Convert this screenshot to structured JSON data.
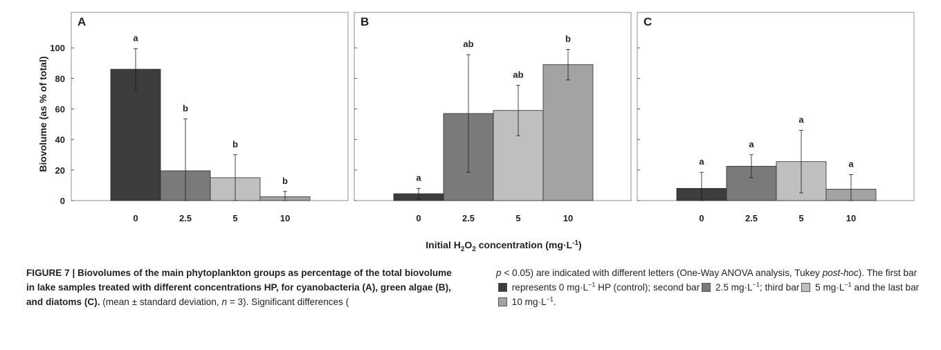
{
  "chart_data": [
    {
      "type": "bar",
      "panel_label": "A",
      "categories": [
        "0",
        "2.5",
        "5",
        "10"
      ],
      "values": [
        86,
        19.5,
        15,
        2.5
      ],
      "error": [
        13.5,
        34,
        15,
        3.5
      ],
      "significance": [
        "a",
        "b",
        "b",
        "b"
      ],
      "ylim": [
        0,
        120
      ],
      "yticks": [
        "0",
        "20",
        "40",
        "60",
        "80",
        "100"
      ]
    },
    {
      "type": "bar",
      "panel_label": "B",
      "categories": [
        "0",
        "2.5",
        "5",
        "10"
      ],
      "values": [
        4.5,
        57,
        59,
        89
      ],
      "error": [
        3.5,
        38.5,
        16.5,
        10
      ],
      "significance": [
        "a",
        "ab",
        "ab",
        "b"
      ],
      "ylim": [
        0,
        120
      ]
    },
    {
      "type": "bar",
      "panel_label": "C",
      "categories": [
        "0",
        "2.5",
        "5",
        "10"
      ],
      "values": [
        8,
        22.5,
        25.5,
        7.5
      ],
      "error": [
        10.5,
        7.5,
        20.5,
        9.5
      ],
      "significance": [
        "a",
        "a",
        "a",
        "a"
      ],
      "ylim": [
        0,
        120
      ]
    }
  ],
  "axes": {
    "ylabel": "Biovolume (as % of total)",
    "xlabel_pre": "Initial H",
    "xlabel_sub": "2",
    "xlabel_mid": "O",
    "xlabel_sub2": "2",
    "xlabel_post": " concentration (mg·L",
    "xlabel_sup": "-1",
    "xlabel_end": ")"
  },
  "colors": {
    "bar_fills": [
      "#3d3d3d",
      "#7a7a7a",
      "#bfbfbf",
      "#a3a3a3"
    ],
    "bar_stroke": "#2b2b2b",
    "panel_border": "#8c8c8c"
  },
  "caption": {
    "bold_text": "FIGURE 7 | Biovolumes of the main phytoplankton groups as percentage of the total biovolume in lake samples treated with different concentrations HP, for cyanobacteria (A), green algae (B), and diatoms (C).",
    "t1": " (mean ± standard deviation, ",
    "t1_it": "n",
    "t2": " = 3). Significant differences (",
    "t2_it": "p",
    "t3": " < 0.05) are indicated with different letters (One-Way ANOVA analysis, Tukey ",
    "t3_it": "post-hoc",
    "t4": "). The first bar",
    "t5": " represents 0 mg·L",
    "sup": "−1",
    "t6": " HP (control); second bar",
    "t7": " 2.5 mg·L",
    "t8": "; third bar",
    "t9": " 5 mg·L",
    "t10": " and the last bar",
    "t11": " 10 mg·L",
    "t12": "."
  }
}
